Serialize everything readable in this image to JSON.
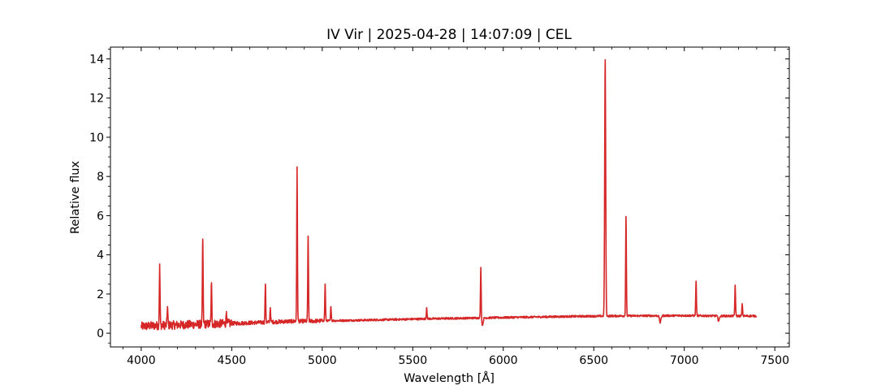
{
  "chart_data": {
    "type": "line",
    "title": "IV Vir | 2025-04-28 | 14:07:09 | CEL",
    "xlabel": "Wavelength [Å]",
    "ylabel": "Relative flux",
    "xlim": [
      3830,
      7580
    ],
    "ylim": [
      -0.7,
      14.6
    ],
    "x_ticks": [
      4000,
      4500,
      5000,
      5500,
      6000,
      6500,
      7000,
      7500
    ],
    "y_ticks": [
      0,
      2,
      4,
      6,
      8,
      10,
      12,
      14
    ],
    "grid": false,
    "legend": "none",
    "series_color": "#d62728",
    "continuum": [
      [
        4000,
        0.35
      ],
      [
        4100,
        0.4
      ],
      [
        4200,
        0.42
      ],
      [
        4300,
        0.45
      ],
      [
        4400,
        0.48
      ],
      [
        4500,
        0.5
      ],
      [
        4600,
        0.53
      ],
      [
        4700,
        0.56
      ],
      [
        4800,
        0.6
      ],
      [
        5000,
        0.63
      ],
      [
        5200,
        0.66
      ],
      [
        5400,
        0.7
      ],
      [
        5600,
        0.74
      ],
      [
        5800,
        0.77
      ],
      [
        6000,
        0.8
      ],
      [
        6200,
        0.83
      ],
      [
        6400,
        0.86
      ],
      [
        6600,
        0.88
      ],
      [
        6800,
        0.89
      ],
      [
        7000,
        0.9
      ],
      [
        7200,
        0.88
      ],
      [
        7400,
        0.88
      ]
    ],
    "emission_lines": [
      {
        "x": 4102,
        "peak": 3.4
      },
      {
        "x": 4145,
        "peak": 1.35
      },
      {
        "x": 4340,
        "peak": 4.8
      },
      {
        "x": 4388,
        "peak": 2.5
      },
      {
        "x": 4471,
        "peak": 1.1
      },
      {
        "x": 4686,
        "peak": 2.5
      },
      {
        "x": 4713,
        "peak": 1.3
      },
      {
        "x": 4861,
        "peak": 8.4
      },
      {
        "x": 4922,
        "peak": 4.95
      },
      {
        "x": 5016,
        "peak": 2.5
      },
      {
        "x": 5048,
        "peak": 1.35
      },
      {
        "x": 5577,
        "peak": 1.3
      },
      {
        "x": 5876,
        "peak": 3.35
      },
      {
        "x": 6563,
        "peak": 13.95
      },
      {
        "x": 6678,
        "peak": 5.95
      },
      {
        "x": 7065,
        "peak": 2.65
      },
      {
        "x": 7281,
        "peak": 2.45
      },
      {
        "x": 7320,
        "peak": 1.5
      }
    ],
    "absorption_dips": [
      {
        "x": 5885,
        "depth": 0.35
      },
      {
        "x": 6867,
        "depth": 0.35
      },
      {
        "x": 7190,
        "depth": 0.25
      }
    ]
  }
}
